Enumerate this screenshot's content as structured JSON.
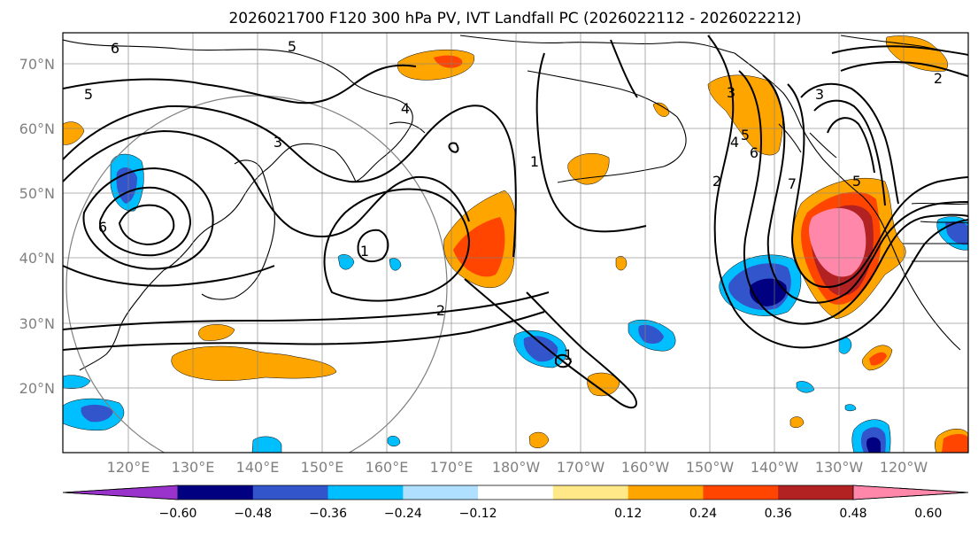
{
  "title": "2026021700 F120 300 hPa PV, IVT Landfall PC (2026022112 - 2026022212)",
  "map": {
    "lon_range": [
      110,
      -115
    ],
    "lat_range": [
      10,
      75
    ],
    "lat_labels": [
      "20°N",
      "30°N",
      "40°N",
      "50°N",
      "60°N",
      "70°N"
    ],
    "lon_labels": [
      "120°E",
      "130°E",
      "140°E",
      "150°E",
      "160°E",
      "170°E",
      "180°W",
      "170°W",
      "160°W",
      "150°W",
      "140°W",
      "130°W",
      "120°W"
    ],
    "contour_labels": [
      "6",
      "5",
      "5",
      "4",
      "3",
      "1",
      "1",
      "6",
      "2",
      "1",
      "2",
      "3",
      "4",
      "5",
      "6",
      "7",
      "3",
      "2",
      "5"
    ]
  },
  "colorbar": {
    "ticks": [
      "−0.60",
      "−0.48",
      "−0.36",
      "−0.24",
      "−0.12",
      "0.12",
      "0.24",
      "0.36",
      "0.48",
      "0.60"
    ],
    "colors": [
      "#9933cc",
      "#000080",
      "#3355cc",
      "#00bfff",
      "#b0e0ff",
      "#ffffff",
      "#ffe888",
      "#ffa500",
      "#ff4500",
      "#b22222",
      "#ff88aa"
    ]
  }
}
